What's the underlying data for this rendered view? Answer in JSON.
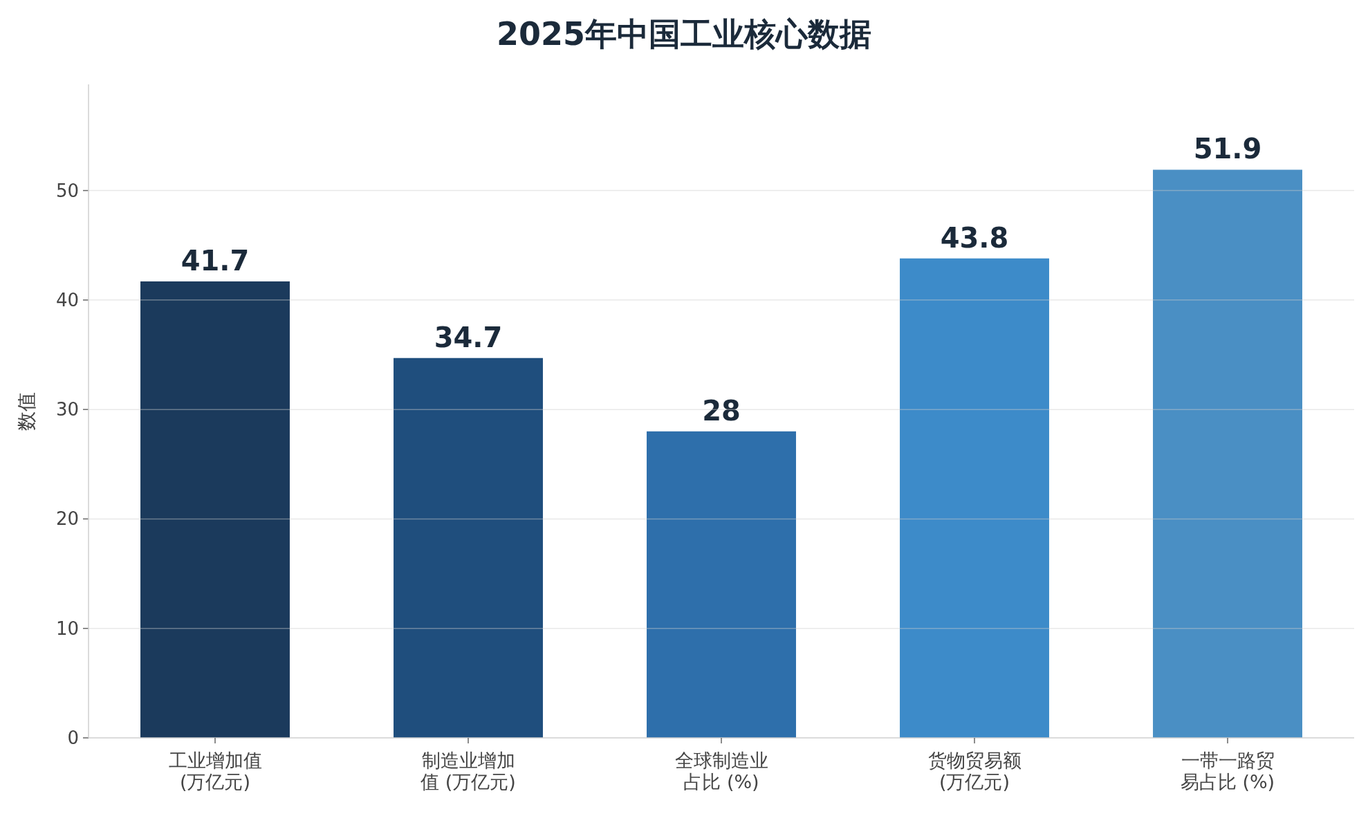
{
  "chart_data": {
    "type": "bar",
    "title": "2025年中国工业核心数据",
    "ylabel": "数值",
    "categories": [
      "工业增加值 (万亿元)",
      "制造业增加值 (万亿元)",
      "全球制造业占比 (%)",
      "货物贸易额 (万亿元)",
      "一带一路贸易占比 (%)"
    ],
    "values": [
      41.7,
      34.7,
      28,
      43.8,
      51.9
    ],
    "colors": [
      "#1b3a5c",
      "#1f4e7d",
      "#2e6fab",
      "#3d8bc9",
      "#4a8fc4"
    ],
    "ylim": [
      0,
      59.7
    ],
    "yticks": [
      0,
      10,
      20,
      30,
      40,
      50
    ],
    "grid": "y",
    "data_labels": true
  }
}
